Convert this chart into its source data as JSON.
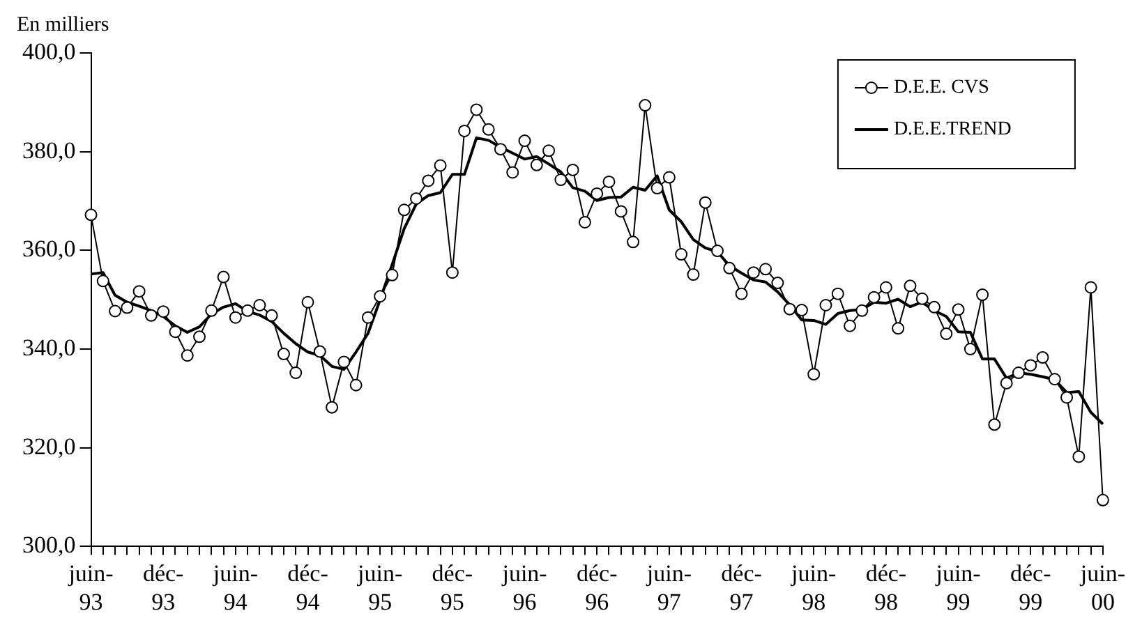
{
  "chart_data": {
    "type": "line",
    "ylabel": "En milliers",
    "categories": [
      "juin-93",
      null,
      null,
      null,
      null,
      null,
      "déc-93",
      null,
      null,
      null,
      null,
      null,
      "juin-94",
      null,
      null,
      null,
      null,
      null,
      "déc-94",
      null,
      null,
      null,
      null,
      null,
      "juin-95",
      null,
      null,
      null,
      null,
      null,
      "déc-95",
      null,
      null,
      null,
      null,
      null,
      "juin-96",
      null,
      null,
      null,
      null,
      null,
      "déc-96",
      null,
      null,
      null,
      null,
      null,
      "juin-97",
      null,
      null,
      null,
      null,
      null,
      "déc-97",
      null,
      null,
      null,
      null,
      null,
      "juin-98",
      null,
      null,
      null,
      null,
      null,
      "déc-98",
      null,
      null,
      null,
      null,
      null,
      "juin-99",
      null,
      null,
      null,
      null,
      null,
      "déc-99",
      null,
      null,
      null,
      null,
      null,
      "juin-00"
    ],
    "series": [
      {
        "name": "D.E.E. CVS",
        "color": "#000000",
        "marker": "circle",
        "values": [
          367.2,
          353.8,
          347.7,
          348.4,
          351.7,
          346.8,
          347.6,
          343.5,
          338.7,
          342.5,
          347.8,
          354.6,
          346.4,
          347.8,
          348.9,
          346.8,
          339.0,
          335.2,
          349.5,
          339.5,
          328.2,
          337.4,
          332.7,
          346.4,
          350.7,
          355.0,
          368.2,
          370.5,
          374.1,
          377.2,
          355.5,
          384.2,
          388.5,
          384.5,
          380.5,
          375.8,
          382.2,
          377.3,
          380.2,
          374.3,
          376.3,
          365.7,
          371.5,
          373.9,
          367.9,
          361.7,
          389.4,
          372.6,
          374.8,
          359.2,
          355.1,
          369.7,
          359.9,
          356.4,
          351.2,
          355.5,
          356.2,
          353.4,
          348.1,
          347.9,
          334.9,
          348.9,
          351.2,
          344.7,
          347.8,
          350.5,
          352.5,
          344.2,
          352.8,
          350.2,
          348.5,
          343.1,
          348.0,
          340.0,
          351.0,
          324.7,
          333.1,
          335.2,
          336.7,
          338.3,
          333.9,
          330.2,
          318.2,
          352.5,
          309.4
        ]
      },
      {
        "name": "D.E.E.TREND",
        "color": "#000000",
        "marker": "none",
        "values": [
          355.2,
          355.5,
          350.9,
          349.5,
          348.7,
          347.8,
          346.6,
          344.7,
          343.4,
          344.5,
          347.1,
          348.5,
          349.2,
          347.6,
          346.9,
          345.6,
          343.2,
          341.1,
          339.4,
          338.7,
          336.5,
          335.9,
          339.4,
          343.2,
          350.0,
          357.1,
          364.4,
          369.4,
          371.1,
          371.7,
          375.4,
          375.4,
          382.8,
          382.3,
          380.9,
          379.7,
          378.5,
          379.0,
          377.5,
          375.9,
          372.7,
          372.0,
          370.1,
          370.7,
          370.8,
          372.8,
          372.2,
          375.1,
          368.2,
          365.8,
          362.2,
          360.5,
          359.7,
          356.9,
          355.4,
          354.0,
          353.6,
          351.6,
          349.0,
          345.9,
          345.8,
          345.0,
          347.2,
          347.8,
          348.0,
          349.5,
          349.3,
          350.1,
          348.6,
          349.5,
          347.8,
          346.6,
          343.5,
          343.4,
          338.0,
          338.0,
          334.1,
          335.2,
          334.9,
          334.4,
          333.8,
          331.2,
          331.4,
          327.2,
          324.8
        ]
      }
    ],
    "ylim": [
      300,
      400
    ],
    "yticks": [
      {
        "value": 300,
        "label": "300,0"
      },
      {
        "value": 320,
        "label": "320,0"
      },
      {
        "value": 340,
        "label": "340,0"
      },
      {
        "value": 360,
        "label": "360,0"
      },
      {
        "value": 380,
        "label": "380,0"
      },
      {
        "value": 400,
        "label": "400,0"
      }
    ],
    "grid": false,
    "legend": "top right"
  }
}
